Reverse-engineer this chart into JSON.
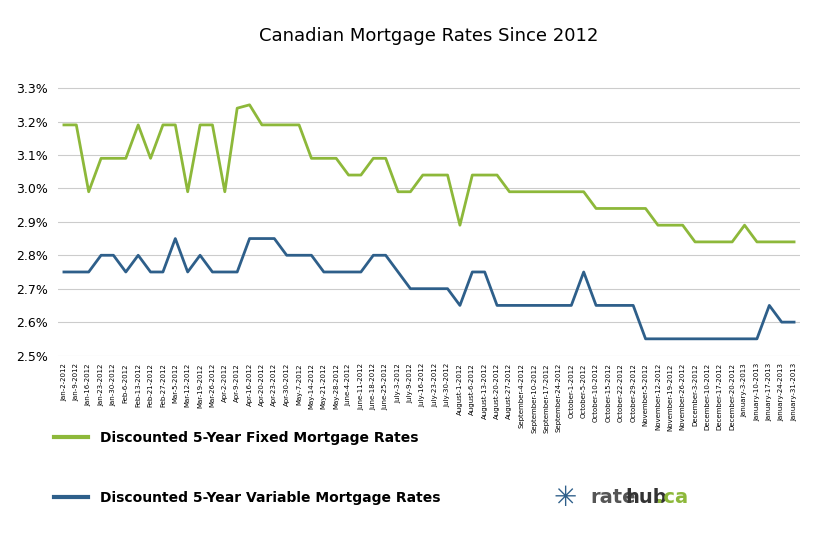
{
  "title": "Canadian Mortgage Rates Since 2012",
  "fixed_label": "Discounted 5-Year Fixed Mortgage Rates",
  "variable_label": "Discounted 5-Year Variable Mortgage Rates",
  "fixed_color": "#8db83a",
  "variable_color": "#2e5f8a",
  "ylim": [
    0.025,
    0.034
  ],
  "yticks": [
    0.025,
    0.026,
    0.027,
    0.028,
    0.029,
    0.03,
    0.031,
    0.032,
    0.033
  ],
  "background_color": "#ffffff",
  "grid_color": "#cccccc",
  "dates": [
    "Jan-2-2012",
    "Jan-9-2012",
    "Jan-16-2012",
    "Jan-23-2012",
    "Jan-30-2012",
    "Feb-6-2012",
    "Feb-13-2012",
    "Feb-21-2012",
    "Feb-27-2012",
    "Mar-5-2012",
    "Mar-12-2012",
    "Mar-19-2012",
    "Mar-26-2012",
    "Apr-2-2012",
    "Apr-9-2012",
    "Apr-16-2012",
    "Apr-20-2012",
    "Apr-23-2012",
    "Apr-30-2012",
    "May-7-2012",
    "May-14-2012",
    "May-21-2012",
    "May-28-2012",
    "June-4-2012",
    "June-11-2012",
    "June-18-2012",
    "June-25-2012",
    "July-3-2012",
    "July-9-2012",
    "July-16-2012",
    "July-23-2012",
    "July-30-2012",
    "August-1-2012",
    "August-6-2012",
    "August-13-2012",
    "August-20-2012",
    "August-27-2012",
    "September-4-2012",
    "September-10-2012",
    "September-17-2012",
    "September-24-2012",
    "October-1-2012",
    "October-5-2012",
    "October-10-2012",
    "October-15-2012",
    "October-22-2012",
    "October-29-2012",
    "November-5-2012",
    "November-12-2012",
    "November-19-2012",
    "November-26-2012",
    "December-3-2012",
    "December-10-2012",
    "December-17-2012",
    "December-20-2012",
    "January-3-2013",
    "January-10-2013",
    "January-17-2013",
    "January-24-2013",
    "January-31-2013"
  ],
  "fixed_rates": [
    3.19,
    3.19,
    2.99,
    3.09,
    3.09,
    3.09,
    3.19,
    3.09,
    3.19,
    3.19,
    2.99,
    3.19,
    3.19,
    2.99,
    3.24,
    3.25,
    3.19,
    3.19,
    3.19,
    3.19,
    3.09,
    3.09,
    3.09,
    3.04,
    3.04,
    3.09,
    3.09,
    2.99,
    2.99,
    3.04,
    3.04,
    3.04,
    2.89,
    3.04,
    3.04,
    3.04,
    2.99,
    2.99,
    2.99,
    2.99,
    2.99,
    2.99,
    2.99,
    2.94,
    2.94,
    2.94,
    2.94,
    2.94,
    2.89,
    2.89,
    2.89,
    2.84,
    2.84,
    2.84,
    2.84,
    2.89,
    2.84,
    2.84,
    2.84,
    2.84
  ],
  "variable_rates": [
    2.75,
    2.75,
    2.75,
    2.8,
    2.8,
    2.75,
    2.8,
    2.75,
    2.75,
    2.85,
    2.75,
    2.8,
    2.75,
    2.75,
    2.75,
    2.85,
    2.85,
    2.85,
    2.8,
    2.8,
    2.8,
    2.75,
    2.75,
    2.75,
    2.75,
    2.8,
    2.8,
    2.75,
    2.7,
    2.7,
    2.7,
    2.7,
    2.65,
    2.75,
    2.75,
    2.65,
    2.65,
    2.65,
    2.65,
    2.65,
    2.65,
    2.65,
    2.75,
    2.65,
    2.65,
    2.65,
    2.65,
    2.55,
    2.55,
    2.55,
    2.55,
    2.55,
    2.55,
    2.55,
    2.55,
    2.55,
    2.55,
    2.65,
    2.6,
    2.6
  ]
}
